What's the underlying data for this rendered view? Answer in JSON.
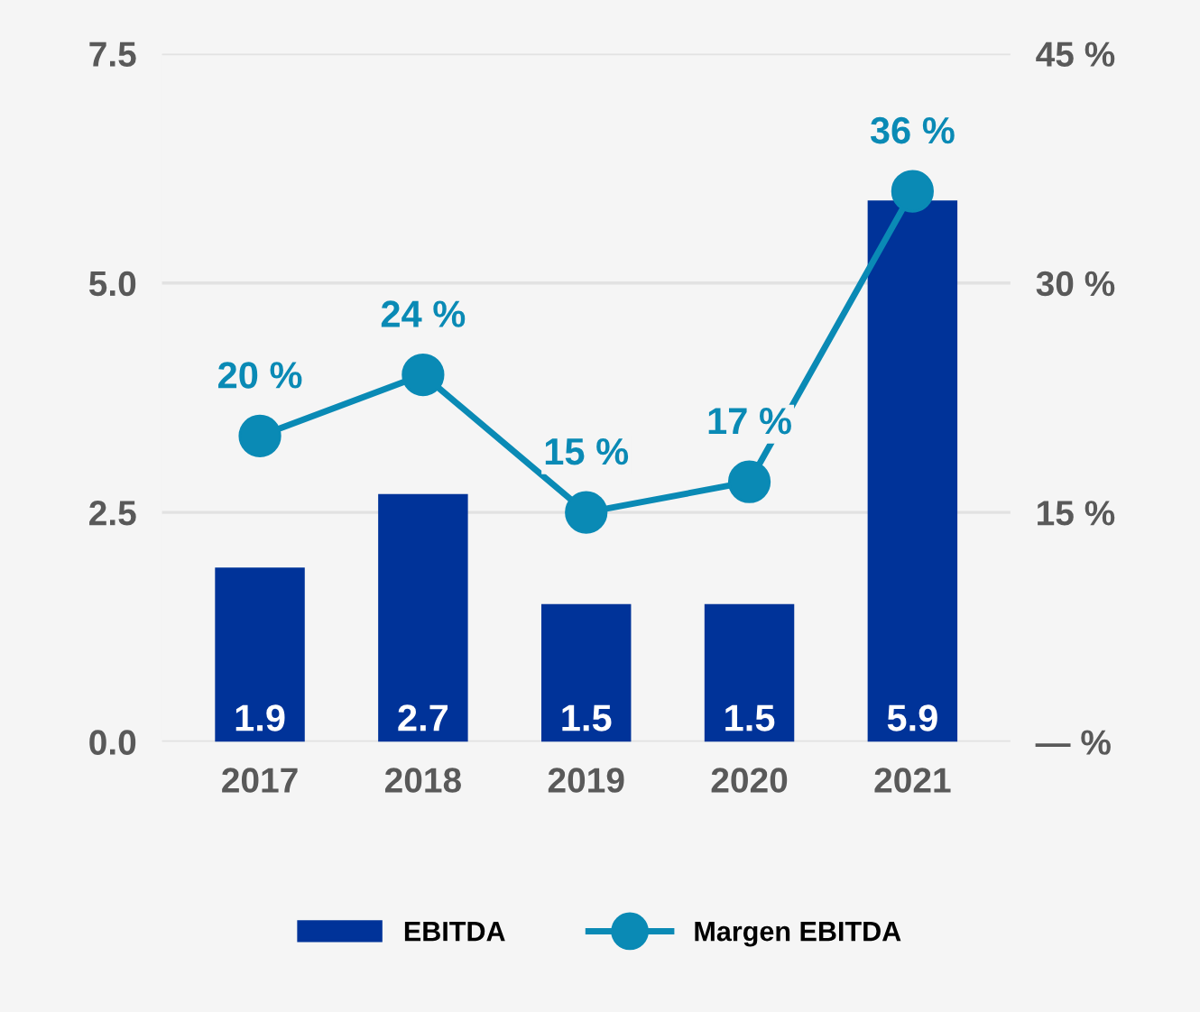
{
  "chart_data": {
    "type": "bar",
    "categories": [
      "2017",
      "2018",
      "2019",
      "2020",
      "2021"
    ],
    "series": [
      {
        "name": "EBITDA",
        "color": "#003399",
        "values": [
          1.9,
          2.7,
          1.5,
          1.5,
          5.9
        ]
      },
      {
        "name": "Margen EBITDA",
        "type": "line",
        "axis": "y2",
        "color": "#0a8ab5",
        "values": [
          20,
          24,
          15,
          17,
          36
        ],
        "value_labels": [
          "20 %",
          "24 %",
          "15 %",
          "17 %",
          "36 %"
        ]
      }
    ],
    "data_labels": true,
    "ylim": [
      0,
      7.5
    ],
    "yticks": [
      {
        "value": 0,
        "label": "0.0"
      },
      2.5,
      {
        "value": 5,
        "label": "5.0"
      },
      7.5
    ],
    "y2lim": [
      0,
      45
    ],
    "y2ticks": [
      {
        "value": 0,
        "label": "— %"
      },
      {
        "value": 15,
        "label": "15 %"
      },
      {
        "value": 30,
        "label": "30 %"
      },
      {
        "value": 45,
        "label": "45 %"
      }
    ],
    "grid": "y",
    "legend": "bottom",
    "marker": "circle",
    "line_style": "solid"
  }
}
